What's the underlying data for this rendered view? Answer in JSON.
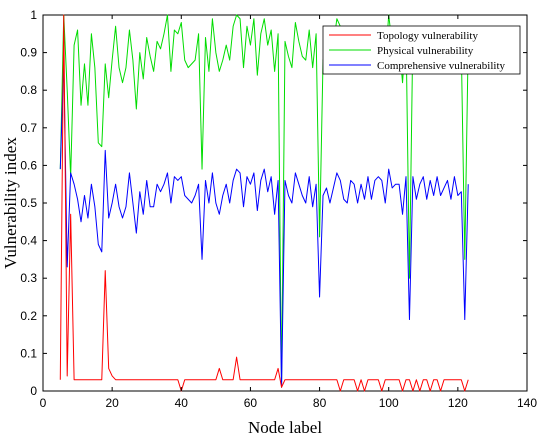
{
  "chart_data": {
    "type": "line",
    "title": "",
    "xlabel": "Node label",
    "ylabel": "Vulnerability index",
    "xlim": [
      0,
      140
    ],
    "ylim": [
      0,
      1
    ],
    "xticks": [
      0,
      20,
      40,
      60,
      80,
      100,
      120,
      140
    ],
    "yticks": [
      0,
      0.1,
      0.2,
      0.3,
      0.4,
      0.5,
      0.6,
      0.7,
      0.8,
      0.9,
      1
    ],
    "xtick_labels": [
      "0",
      "20",
      "40",
      "60",
      "80",
      "100",
      "120",
      "140"
    ],
    "ytick_labels": [
      "0",
      "0.1",
      "0.2",
      "0.3",
      "0.4",
      "0.5",
      "0.6",
      "0.7",
      "0.8",
      "0.9",
      "1"
    ],
    "grid": false,
    "legend_position": "top-right",
    "x": [
      5,
      6,
      7,
      8,
      9,
      10,
      11,
      12,
      13,
      14,
      15,
      16,
      17,
      18,
      19,
      20,
      21,
      22,
      23,
      24,
      25,
      26,
      27,
      28,
      29,
      30,
      31,
      32,
      33,
      34,
      35,
      36,
      37,
      38,
      39,
      40,
      41,
      42,
      43,
      44,
      45,
      46,
      47,
      48,
      49,
      50,
      51,
      52,
      53,
      54,
      55,
      56,
      57,
      58,
      59,
      60,
      61,
      62,
      63,
      64,
      65,
      66,
      67,
      68,
      69,
      70,
      71,
      72,
      73,
      74,
      75,
      76,
      77,
      78,
      79,
      80,
      81,
      82,
      83,
      84,
      85,
      86,
      87,
      88,
      89,
      90,
      91,
      92,
      93,
      94,
      95,
      96,
      97,
      98,
      99,
      100,
      101,
      102,
      103,
      104,
      105,
      106,
      107,
      108,
      109,
      110,
      111,
      112,
      113,
      114,
      115,
      116,
      117,
      118,
      119,
      120,
      121,
      122,
      123
    ],
    "series": [
      {
        "name": "Topology vulnerability",
        "color": "#ff0000",
        "values": [
          0.03,
          1.0,
          0.04,
          0.47,
          0.03,
          0.03,
          0.03,
          0.03,
          0.03,
          0.03,
          0.03,
          0.03,
          0.03,
          0.32,
          0.06,
          0.04,
          0.03,
          0.03,
          0.03,
          0.03,
          0.03,
          0.03,
          0.03,
          0.03,
          0.03,
          0.03,
          0.03,
          0.03,
          0.03,
          0.03,
          0.03,
          0.03,
          0.03,
          0.03,
          0.03,
          0.0,
          0.03,
          0.03,
          0.03,
          0.03,
          0.03,
          0.03,
          0.03,
          0.03,
          0.03,
          0.03,
          0.06,
          0.03,
          0.03,
          0.03,
          0.03,
          0.09,
          0.03,
          0.03,
          0.03,
          0.03,
          0.03,
          0.03,
          0.03,
          0.03,
          0.03,
          0.03,
          0.03,
          0.06,
          0.01,
          0.03,
          0.03,
          0.03,
          0.03,
          0.03,
          0.03,
          0.03,
          0.03,
          0.03,
          0.03,
          0.03,
          0.03,
          0.03,
          0.03,
          0.03,
          0.03,
          0.0,
          0.03,
          0.03,
          0.03,
          0.03,
          0.0,
          0.03,
          0.0,
          0.03,
          0.03,
          0.03,
          0.03,
          0.0,
          0.03,
          0.03,
          0.03,
          0.03,
          0.03,
          0.0,
          0.03,
          0.03,
          0.0,
          0.03,
          0.0,
          0.03,
          0.03,
          0.0,
          0.03,
          0.03,
          0.0,
          0.03,
          0.03,
          0.03,
          0.03,
          0.03,
          0.03,
          0.0,
          0.03
        ]
      },
      {
        "name": "Physical vulnerability",
        "color": "#00dd00",
        "values": [
          0.59,
          1.0,
          0.8,
          0.57,
          0.92,
          0.96,
          0.76,
          0.87,
          0.76,
          0.95,
          0.86,
          0.66,
          0.65,
          0.87,
          0.78,
          0.88,
          0.97,
          0.86,
          0.82,
          0.86,
          0.96,
          0.88,
          0.75,
          0.9,
          0.83,
          0.94,
          0.89,
          0.85,
          0.93,
          0.91,
          0.95,
          1.0,
          0.85,
          0.96,
          0.95,
          0.98,
          0.88,
          0.86,
          0.87,
          0.88,
          0.95,
          0.59,
          0.94,
          0.85,
          0.99,
          0.9,
          0.85,
          0.88,
          0.92,
          0.88,
          0.97,
          1.0,
          0.99,
          0.86,
          0.97,
          0.92,
          0.99,
          0.84,
          0.95,
          0.99,
          0.92,
          0.96,
          0.85,
          0.95,
          0.01,
          0.93,
          0.89,
          0.86,
          0.98,
          0.93,
          0.89,
          0.88,
          0.96,
          0.86,
          0.95,
          0.41,
          0.88,
          0.9,
          0.87,
          0.92,
          0.99,
          0.97,
          0.89,
          0.88,
          0.95,
          0.92,
          0.87,
          0.94,
          0.88,
          0.95,
          0.89,
          0.93,
          0.96,
          0.95,
          0.87,
          1.0,
          0.92,
          0.93,
          0.93,
          0.82,
          0.96,
          0.3,
          0.96,
          0.88,
          0.92,
          0.95,
          0.87,
          0.94,
          0.91,
          0.95,
          0.89,
          0.92,
          0.94,
          0.88,
          0.95,
          0.89,
          0.91,
          0.35,
          0.93
        ]
      },
      {
        "name": "Comprehensive vulnerability",
        "color": "#0000ff",
        "values": [
          0.59,
          0.88,
          0.33,
          0.58,
          0.55,
          0.51,
          0.45,
          0.52,
          0.46,
          0.55,
          0.49,
          0.39,
          0.37,
          0.64,
          0.46,
          0.5,
          0.55,
          0.49,
          0.46,
          0.49,
          0.58,
          0.5,
          0.42,
          0.53,
          0.47,
          0.56,
          0.49,
          0.49,
          0.55,
          0.53,
          0.55,
          0.58,
          0.5,
          0.57,
          0.56,
          0.57,
          0.52,
          0.51,
          0.5,
          0.52,
          0.55,
          0.35,
          0.56,
          0.5,
          0.58,
          0.5,
          0.47,
          0.52,
          0.55,
          0.5,
          0.56,
          0.59,
          0.58,
          0.49,
          0.57,
          0.55,
          0.58,
          0.48,
          0.56,
          0.59,
          0.53,
          0.57,
          0.47,
          0.56,
          0.01,
          0.56,
          0.52,
          0.5,
          0.58,
          0.55,
          0.52,
          0.5,
          0.57,
          0.49,
          0.55,
          0.25,
          0.52,
          0.54,
          0.5,
          0.54,
          0.58,
          0.56,
          0.51,
          0.5,
          0.56,
          0.55,
          0.5,
          0.55,
          0.51,
          0.57,
          0.51,
          0.56,
          0.57,
          0.56,
          0.5,
          0.59,
          0.54,
          0.55,
          0.55,
          0.47,
          0.57,
          0.19,
          0.57,
          0.51,
          0.55,
          0.57,
          0.51,
          0.56,
          0.52,
          0.57,
          0.52,
          0.54,
          0.56,
          0.51,
          0.57,
          0.52,
          0.53,
          0.19,
          0.55
        ]
      }
    ]
  }
}
